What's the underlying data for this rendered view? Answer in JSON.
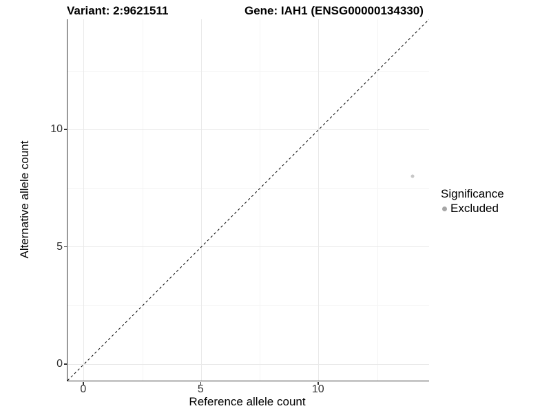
{
  "chart_data": {
    "type": "scatter",
    "titles": {
      "left": "Variant: 2:9621511",
      "right": "Gene: IAH1 (ENSG00000134330)"
    },
    "xlabel": "Reference allele count",
    "ylabel": "Alternative allele count",
    "xlim": [
      -0.7,
      14.7
    ],
    "ylim": [
      -0.7,
      14.7
    ],
    "x_ticks": [
      0,
      5,
      10
    ],
    "y_ticks": [
      0,
      5,
      10
    ],
    "x_minor_gridlines": [
      2.5,
      7.5,
      12.5
    ],
    "y_minor_gridlines": [
      2.5,
      7.5,
      12.5
    ],
    "grid": "on",
    "points": [
      {
        "x": 14,
        "y": 8,
        "significance": "Excluded"
      }
    ],
    "identity_line": {
      "style": "dashed",
      "from": [
        -0.7,
        -0.7
      ],
      "to": [
        14.7,
        14.7
      ],
      "color": "#000000"
    },
    "legend": {
      "title": "Significance",
      "position": "right",
      "items": [
        {
          "label": "Excluded",
          "color": "#a6a6a6"
        }
      ]
    },
    "colors": {
      "point": "#c7c7c7",
      "axis_line": "#333333",
      "major_grid": "#e9e9e9",
      "minor_grid": "#f4f4f4",
      "tick_text": "#303030",
      "title_text": "#000000"
    }
  }
}
